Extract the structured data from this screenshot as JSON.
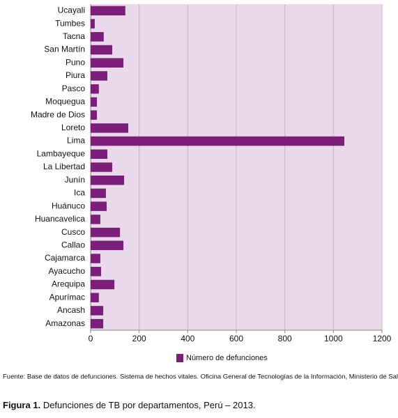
{
  "chart_data": {
    "type": "bar",
    "orientation": "horizontal",
    "categories": [
      "Ucayali",
      "Tumbes",
      "Tacna",
      "San Martín",
      "Puno",
      "Piura",
      "Pasco",
      "Moquegua",
      "Madre de Dios",
      "Loreto",
      "Lima",
      "Lambayeque",
      "La Libertad",
      "Junín",
      "Ica",
      "Huánuco",
      "Huancavelica",
      "Cusco",
      "Callao",
      "Cajamarca",
      "Ayacucho",
      "Arequipa",
      "Apurímac",
      "Ancash",
      "Amazonas"
    ],
    "series": [
      {
        "name": "Número de defunciones",
        "color": "#7b1f7b",
        "values": [
          143,
          17,
          54,
          89,
          135,
          69,
          34,
          26,
          26,
          155,
          1045,
          69,
          89,
          138,
          63,
          66,
          40,
          121,
          135,
          40,
          43,
          98,
          34,
          52,
          52
        ]
      }
    ],
    "xlim": [
      0,
      1200
    ],
    "xticks": [
      0,
      200,
      400,
      600,
      800,
      1000,
      1200
    ],
    "grid": true,
    "legend": "bottom",
    "background": "#ead9ea",
    "source": "Fuente: Base de datos de defunciones. Sistema de hechos vitales. Oficina General de Tecnologías de la Información, Ministerio de Salud.",
    "caption": {
      "label": "Figura 1.",
      "text": "Defunciones de TB por departamentos, Perú – 2013."
    }
  }
}
